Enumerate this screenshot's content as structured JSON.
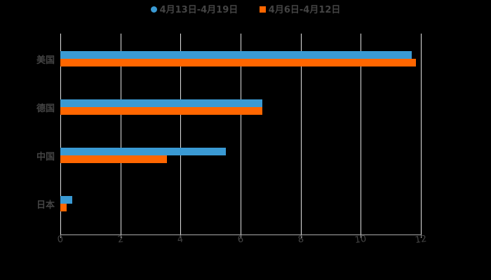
{
  "chart_data": {
    "type": "bar",
    "orientation": "horizontal",
    "title": "",
    "categories": [
      "美国",
      "德国",
      "中国",
      "日本"
    ],
    "series": [
      {
        "name": "4月13日-4月19日",
        "color": "#3a9ad4",
        "values": [
          11.7,
          6.72,
          5.51,
          0.4
        ]
      },
      {
        "name": "4月6日-4月12日",
        "color": "#ff6600",
        "values": [
          11.84,
          6.72,
          3.55,
          0.21
        ]
      }
    ],
    "xlabel": "",
    "ylabel": "",
    "xlim": [
      0,
      12
    ],
    "xticks": [
      "0",
      "2",
      "4",
      "6",
      "8",
      "10",
      "12"
    ],
    "grid": true,
    "legend_position": "top"
  },
  "legend": [
    {
      "label": "4月13日-4月19日",
      "color": "#3a9ad4",
      "shape": "circle"
    },
    {
      "label": "4月6日-4月12日",
      "color": "#ff6600",
      "shape": "square"
    }
  ]
}
